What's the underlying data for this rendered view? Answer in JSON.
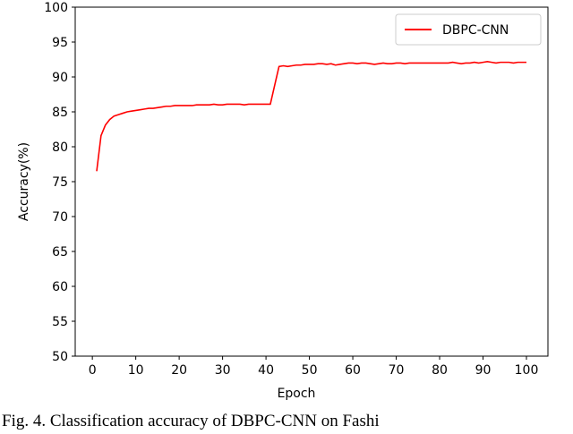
{
  "chart_data": {
    "type": "line",
    "x": [
      1,
      2,
      3,
      4,
      5,
      6,
      7,
      8,
      9,
      10,
      11,
      12,
      13,
      14,
      15,
      16,
      17,
      18,
      19,
      20,
      21,
      22,
      23,
      24,
      25,
      26,
      27,
      28,
      29,
      30,
      31,
      32,
      33,
      34,
      35,
      36,
      37,
      38,
      39,
      40,
      41,
      42,
      43,
      44,
      45,
      46,
      47,
      48,
      49,
      50,
      51,
      52,
      53,
      54,
      55,
      56,
      57,
      58,
      59,
      60,
      61,
      62,
      63,
      64,
      65,
      66,
      67,
      68,
      69,
      70,
      71,
      72,
      73,
      74,
      75,
      76,
      77,
      78,
      79,
      80,
      81,
      82,
      83,
      84,
      85,
      86,
      87,
      88,
      89,
      90,
      91,
      92,
      93,
      94,
      95,
      96,
      97,
      98,
      99,
      100
    ],
    "series": [
      {
        "name": "DBPC-CNN",
        "color": "#ff0000",
        "values": [
          76.5,
          81.6,
          83.1,
          83.9,
          84.4,
          84.6,
          84.8,
          85.0,
          85.1,
          85.2,
          85.3,
          85.4,
          85.5,
          85.5,
          85.6,
          85.7,
          85.8,
          85.8,
          85.9,
          85.9,
          85.9,
          85.9,
          85.9,
          86.0,
          86.0,
          86.0,
          86.0,
          86.1,
          86.0,
          86.0,
          86.1,
          86.1,
          86.1,
          86.1,
          86.0,
          86.1,
          86.1,
          86.1,
          86.1,
          86.1,
          86.1,
          88.8,
          91.5,
          91.6,
          91.5,
          91.6,
          91.7,
          91.7,
          91.8,
          91.8,
          91.8,
          91.9,
          91.9,
          91.8,
          91.9,
          91.7,
          91.8,
          91.9,
          92.0,
          92.0,
          91.9,
          92.0,
          92.0,
          91.9,
          91.8,
          91.9,
          92.0,
          91.9,
          91.9,
          92.0,
          92.0,
          91.9,
          92.0,
          92.0,
          92.0,
          92.0,
          92.0,
          92.0,
          92.0,
          92.0,
          92.0,
          92.0,
          92.1,
          92.0,
          91.9,
          92.0,
          92.0,
          92.1,
          92.0,
          92.1,
          92.2,
          92.1,
          92.0,
          92.1,
          92.1,
          92.1,
          92.0,
          92.1,
          92.1,
          92.1
        ]
      }
    ],
    "x_label": "Epoch",
    "y_label": "Accuracy(%)",
    "xlim": [
      -3.95,
      104.95
    ],
    "xticks": [
      0,
      10,
      20,
      30,
      40,
      50,
      60,
      70,
      80,
      90,
      100
    ],
    "ylim": [
      50,
      100
    ],
    "yticks": [
      50,
      55,
      60,
      65,
      70,
      75,
      80,
      85,
      90,
      95,
      100
    ],
    "legend": "upper right",
    "caption": "Fig. 4. Classification accuracy of DBPC-CNN on Fashi"
  }
}
